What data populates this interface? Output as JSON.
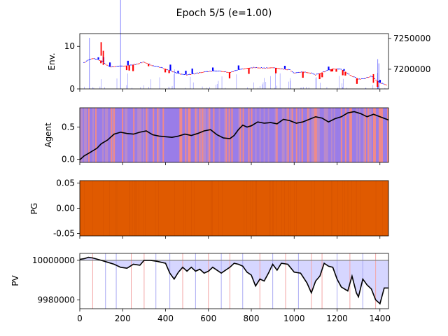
{
  "chart_data": {
    "title": "Epoch 5/5 (e=1.00)",
    "type": "multi-panel",
    "xlim": [
      0,
      1440
    ],
    "x_ticks": [
      "0",
      "200",
      "400",
      "600",
      "800",
      "1000",
      "1200",
      "1400"
    ],
    "x_tick_values": [
      0,
      200,
      400,
      600,
      800,
      1000,
      1200,
      1400
    ],
    "colors": {
      "up": "#0000ff",
      "down": "#ff0000",
      "volume": "#0000ff",
      "agent_line": "#000000",
      "pg_fill": "#e05a00",
      "baseline": "#808080",
      "pv_fill": "#d6d6ff"
    },
    "panels": [
      {
        "ylabel": "Env.",
        "type": "candlestick+volume",
        "ylim_left": [
          0,
          13
        ],
        "yticks_left": [
          "0",
          "10"
        ],
        "ytick_values_left": [
          0,
          10
        ],
        "ylim_right": [
          7168000,
          7258000
        ],
        "yticks_right": [
          "7200000",
          "7250000"
        ],
        "ytick_values_right": [
          7200000,
          7250000
        ],
        "price_path": [
          [
            0,
            7206000
          ],
          [
            30,
            7213000
          ],
          [
            60,
            7218000
          ],
          [
            100,
            7214000
          ],
          [
            140,
            7204000
          ],
          [
            180,
            7205000
          ],
          [
            220,
            7206000
          ],
          [
            260,
            7208000
          ],
          [
            300,
            7212000
          ],
          [
            340,
            7206000
          ],
          [
            380,
            7203000
          ],
          [
            420,
            7198000
          ],
          [
            460,
            7193000
          ],
          [
            500,
            7191000
          ],
          [
            540,
            7193000
          ],
          [
            580,
            7196000
          ],
          [
            620,
            7197000
          ],
          [
            660,
            7197000
          ],
          [
            700,
            7195000
          ],
          [
            740,
            7199000
          ],
          [
            780,
            7202000
          ],
          [
            820,
            7203000
          ],
          [
            860,
            7202000
          ],
          [
            900,
            7203000
          ],
          [
            940,
            7201000
          ],
          [
            980,
            7199000
          ],
          [
            1000,
            7194000
          ],
          [
            1040,
            7196000
          ],
          [
            1080,
            7194000
          ],
          [
            1100,
            7191000
          ],
          [
            1140,
            7196000
          ],
          [
            1180,
            7201000
          ],
          [
            1220,
            7200000
          ],
          [
            1260,
            7191000
          ],
          [
            1300,
            7184000
          ],
          [
            1330,
            7185000
          ],
          [
            1360,
            7189000
          ],
          [
            1400,
            7178000
          ],
          [
            1440,
            7174000
          ]
        ]
      },
      {
        "ylabel": "Agent",
        "type": "line",
        "ylim": [
          -0.05,
          0.8
        ],
        "yticks": [
          "0.0",
          "0.5"
        ],
        "ytick_values": [
          0.0,
          0.5
        ],
        "line": [
          [
            0,
            -0.01
          ],
          [
            20,
            0.05
          ],
          [
            40,
            0.09
          ],
          [
            60,
            0.13
          ],
          [
            80,
            0.17
          ],
          [
            100,
            0.24
          ],
          [
            130,
            0.3
          ],
          [
            160,
            0.39
          ],
          [
            190,
            0.42
          ],
          [
            220,
            0.4
          ],
          [
            250,
            0.39
          ],
          [
            280,
            0.42
          ],
          [
            310,
            0.44
          ],
          [
            340,
            0.38
          ],
          [
            370,
            0.36
          ],
          [
            400,
            0.35
          ],
          [
            430,
            0.34
          ],
          [
            460,
            0.36
          ],
          [
            490,
            0.39
          ],
          [
            520,
            0.37
          ],
          [
            550,
            0.4
          ],
          [
            580,
            0.44
          ],
          [
            610,
            0.46
          ],
          [
            640,
            0.38
          ],
          [
            670,
            0.33
          ],
          [
            700,
            0.32
          ],
          [
            720,
            0.37
          ],
          [
            740,
            0.46
          ],
          [
            760,
            0.53
          ],
          [
            780,
            0.5
          ],
          [
            800,
            0.52
          ],
          [
            830,
            0.58
          ],
          [
            860,
            0.56
          ],
          [
            890,
            0.57
          ],
          [
            920,
            0.55
          ],
          [
            950,
            0.62
          ],
          [
            980,
            0.6
          ],
          [
            1010,
            0.56
          ],
          [
            1040,
            0.58
          ],
          [
            1070,
            0.62
          ],
          [
            1100,
            0.66
          ],
          [
            1130,
            0.64
          ],
          [
            1160,
            0.58
          ],
          [
            1190,
            0.63
          ],
          [
            1220,
            0.66
          ],
          [
            1250,
            0.72
          ],
          [
            1280,
            0.74
          ],
          [
            1310,
            0.71
          ],
          [
            1340,
            0.66
          ],
          [
            1370,
            0.7
          ],
          [
            1400,
            0.66
          ],
          [
            1440,
            0.61
          ]
        ]
      },
      {
        "ylabel": "PG",
        "type": "filled",
        "ylim": [
          -0.055,
          0.055
        ],
        "yticks": [
          "0.05",
          "0.00",
          "-0.05"
        ],
        "ytick_values": [
          0.05,
          0.0,
          -0.05
        ]
      },
      {
        "ylabel": "PV",
        "type": "line+baseline",
        "ylim": [
          9975500,
          10003500
        ],
        "yticks": [
          "10000000",
          "9980000"
        ],
        "ytick_values": [
          10000000,
          9980000
        ],
        "baseline": 10000000,
        "line": [
          [
            0,
            10000500
          ],
          [
            20,
            10000800
          ],
          [
            40,
            10001500
          ],
          [
            60,
            10001200
          ],
          [
            100,
            10000000
          ],
          [
            130,
            9999000
          ],
          [
            160,
            9998000
          ],
          [
            190,
            9996500
          ],
          [
            220,
            9996000
          ],
          [
            250,
            9998000
          ],
          [
            280,
            9997500
          ],
          [
            300,
            10000000
          ],
          [
            330,
            10000000
          ],
          [
            360,
            9999500
          ],
          [
            400,
            9998500
          ],
          [
            420,
            9993500
          ],
          [
            440,
            9990500
          ],
          [
            460,
            9994000
          ],
          [
            480,
            9996500
          ],
          [
            500,
            9994500
          ],
          [
            520,
            9996500
          ],
          [
            540,
            9994500
          ],
          [
            560,
            9995500
          ],
          [
            580,
            9993500
          ],
          [
            600,
            9994500
          ],
          [
            620,
            9996500
          ],
          [
            660,
            9993500
          ],
          [
            700,
            9996500
          ],
          [
            720,
            9998500
          ],
          [
            740,
            9998000
          ],
          [
            760,
            9997000
          ],
          [
            780,
            9994000
          ],
          [
            800,
            9992500
          ],
          [
            820,
            9987000
          ],
          [
            840,
            9990500
          ],
          [
            860,
            9989500
          ],
          [
            880,
            9993500
          ],
          [
            900,
            9998000
          ],
          [
            920,
            9995000
          ],
          [
            940,
            9998500
          ],
          [
            970,
            9998000
          ],
          [
            1000,
            9994000
          ],
          [
            1030,
            9993500
          ],
          [
            1060,
            9988500
          ],
          [
            1080,
            9983500
          ],
          [
            1100,
            9989500
          ],
          [
            1120,
            9992000
          ],
          [
            1140,
            9998500
          ],
          [
            1160,
            9997000
          ],
          [
            1180,
            9996500
          ],
          [
            1200,
            9990500
          ],
          [
            1220,
            9986500
          ],
          [
            1250,
            9984500
          ],
          [
            1270,
            9992000
          ],
          [
            1290,
            9983500
          ],
          [
            1300,
            9981500
          ],
          [
            1320,
            9990500
          ],
          [
            1340,
            9987500
          ],
          [
            1360,
            9985500
          ],
          [
            1380,
            9980000
          ],
          [
            1400,
            9978000
          ],
          [
            1420,
            9986000
          ],
          [
            1440,
            9986000
          ]
        ]
      }
    ]
  }
}
